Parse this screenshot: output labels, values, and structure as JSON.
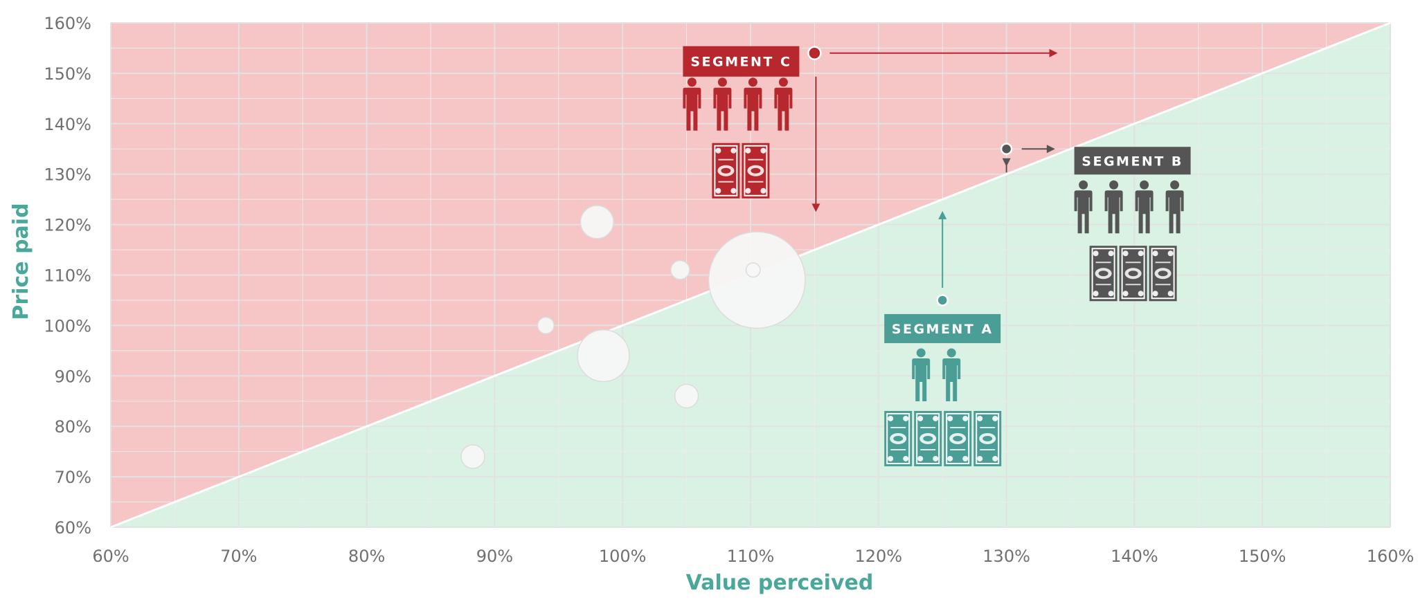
{
  "chart_data": {
    "type": "scatter",
    "title": "",
    "xlabel": "Value perceived",
    "ylabel": "Price paid",
    "xlim": [
      60,
      160
    ],
    "ylim": [
      60,
      160
    ],
    "x_ticks": [
      "60%",
      "70%",
      "80%",
      "90%",
      "100%",
      "110%",
      "120%",
      "130%",
      "140%",
      "150%",
      "160%"
    ],
    "y_ticks": [
      "60%",
      "70%",
      "80%",
      "90%",
      "100%",
      "110%",
      "120%",
      "130%",
      "140%",
      "150%",
      "160%"
    ],
    "grid": true,
    "diagonal": {
      "from": [
        60,
        60
      ],
      "to": [
        160,
        160
      ]
    },
    "colors": {
      "above_diagonal": "#f6c5c5",
      "below_diagonal": "#d9f2e4",
      "axis_title": "#4aa89b",
      "segment_a": "#4a9e95",
      "segment_b": "#555555",
      "segment_c": "#b7282e",
      "bubble": "#f7f7f7"
    },
    "bubbles": [
      {
        "x": 88.3,
        "y": 74,
        "size": 1.0
      },
      {
        "x": 94,
        "y": 100,
        "size": 0.7
      },
      {
        "x": 98,
        "y": 120.5,
        "size": 1.4
      },
      {
        "x": 98.5,
        "y": 94,
        "size": 2.2
      },
      {
        "x": 104.5,
        "y": 111,
        "size": 0.8
      },
      {
        "x": 105,
        "y": 86,
        "size": 1.0
      },
      {
        "x": 110.5,
        "y": 109,
        "size": 4.1
      },
      {
        "x": 110.2,
        "y": 111,
        "size": 0.6
      }
    ],
    "segments": [
      {
        "key": "c",
        "label": "SEGMENT C",
        "x": 115,
        "y": 154,
        "people": 4,
        "bills": 2,
        "arrow_right_to": 134,
        "arrow_down_to": 122.5
      },
      {
        "key": "b",
        "label": "SEGMENT B",
        "x": 130,
        "y": 135,
        "people": 4,
        "bills": 3,
        "arrow_right_to": 133.8,
        "arrow_down_to": 131.5
      },
      {
        "key": "a",
        "label": "SEGMENT A",
        "x": 125,
        "y": 105,
        "people": 2,
        "bills": 4,
        "arrow_up_to": 122.7
      }
    ]
  }
}
